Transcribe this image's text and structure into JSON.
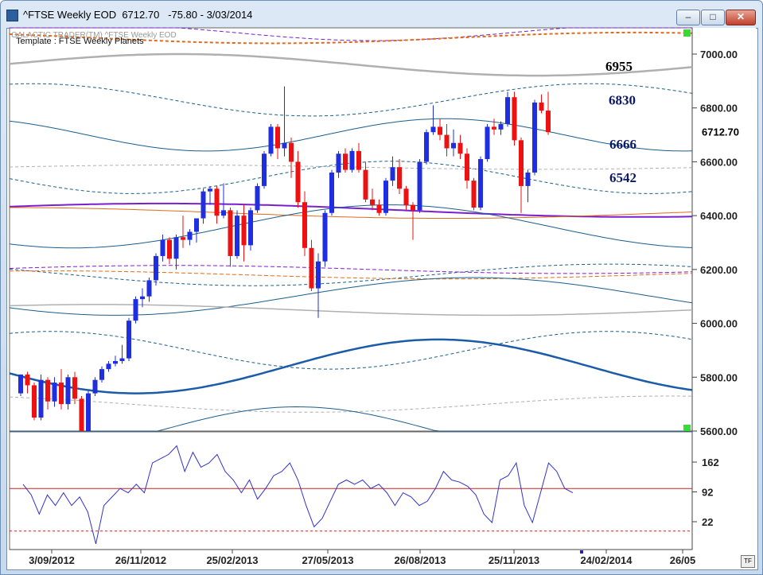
{
  "window": {
    "title": "^FTSE Weekly EOD  6712.70   -75.80 - 3/03/2014",
    "minimize_icon": "minimize-icon",
    "maximize_icon": "maximize-icon",
    "close_icon": "close-icon"
  },
  "chart_header": {
    "watermark": "GALACTIC TRADER(TM)        ^FTSE Weekly EOD",
    "template": "Template : FTSE Weekly Planets"
  },
  "tf_label": "TF",
  "colors": {
    "up": "#1f2ee0",
    "down": "#ee1111",
    "planet_purple": "#7a1fd0",
    "planet_orange": "#e06a1c",
    "planet_teal": "#1a5e8e",
    "planet_gray": "#b0b0b0",
    "oscillator": "#3333cc",
    "osc_line": "#cc2222"
  },
  "chart_data": [
    {
      "type": "candlestick",
      "yticks": [
        "7000.00",
        "6800.00",
        "6600.00",
        "6400.00",
        "6200.00",
        "6000.00",
        "5800.00",
        "5600.00"
      ],
      "ylim": [
        5600,
        7100
      ],
      "xticks": [
        "3/09/2012",
        "26/11/2012",
        "25/02/2013",
        "27/05/2013",
        "26/08/2013",
        "25/11/2013",
        "24/02/2014",
        "26/05"
      ],
      "last_value_label": "6712.70",
      "annotations": [
        {
          "label": "6955",
          "value": 6955
        },
        {
          "label": "6830",
          "value": 6830
        },
        {
          "label": "6666",
          "value": 6666
        },
        {
          "label": "6542",
          "value": 6542
        }
      ],
      "candles": [
        [
          5740,
          5810,
          5730,
          5810
        ],
        [
          5810,
          5820,
          5740,
          5770
        ],
        [
          5770,
          5780,
          5640,
          5650
        ],
        [
          5650,
          5810,
          5640,
          5790
        ],
        [
          5790,
          5800,
          5680,
          5710
        ],
        [
          5710,
          5800,
          5690,
          5780
        ],
        [
          5780,
          5830,
          5680,
          5700
        ],
        [
          5700,
          5810,
          5680,
          5800
        ],
        [
          5800,
          5820,
          5700,
          5720
        ],
        [
          5720,
          5730,
          5560,
          5570
        ],
        [
          5570,
          5750,
          5560,
          5740
        ],
        [
          5740,
          5800,
          5730,
          5790
        ],
        [
          5790,
          5840,
          5780,
          5830
        ],
        [
          5830,
          5860,
          5820,
          5850
        ],
        [
          5850,
          5880,
          5840,
          5860
        ],
        [
          5860,
          5920,
          5850,
          5870
        ],
        [
          5870,
          6020,
          5860,
          6010
        ],
        [
          6010,
          6100,
          6000,
          6090
        ],
        [
          6090,
          6130,
          6060,
          6100
        ],
        [
          6100,
          6170,
          6080,
          6160
        ],
        [
          6160,
          6260,
          6140,
          6250
        ],
        [
          6250,
          6330,
          6230,
          6310
        ],
        [
          6310,
          6320,
          6220,
          6240
        ],
        [
          6240,
          6330,
          6200,
          6320
        ],
        [
          6320,
          6400,
          6280,
          6310
        ],
        [
          6310,
          6350,
          6290,
          6340
        ],
        [
          6340,
          6380,
          6300,
          6390
        ],
        [
          6390,
          6500,
          6370,
          6490
        ],
        [
          6490,
          6510,
          6440,
          6500
        ],
        [
          6500,
          6510,
          6370,
          6400
        ],
        [
          6400,
          6520,
          6390,
          6420
        ],
        [
          6420,
          6430,
          6210,
          6250
        ],
        [
          6250,
          6420,
          6240,
          6400
        ],
        [
          6400,
          6440,
          6230,
          6290
        ],
        [
          6290,
          6430,
          6270,
          6420
        ],
        [
          6420,
          6520,
          6410,
          6510
        ],
        [
          6510,
          6640,
          6500,
          6630
        ],
        [
          6630,
          6740,
          6620,
          6730
        ],
        [
          6730,
          6740,
          6610,
          6650
        ],
        [
          6650,
          6880,
          6620,
          6670
        ],
        [
          6670,
          6690,
          6540,
          6600
        ],
        [
          6600,
          6640,
          6430,
          6450
        ],
        [
          6450,
          6490,
          6250,
          6280
        ],
        [
          6280,
          6310,
          6120,
          6130
        ],
        [
          6130,
          6260,
          6020,
          6230
        ],
        [
          6230,
          6420,
          6210,
          6410
        ],
        [
          6410,
          6570,
          6400,
          6560
        ],
        [
          6560,
          6640,
          6540,
          6630
        ],
        [
          6630,
          6650,
          6560,
          6570
        ],
        [
          6570,
          6650,
          6560,
          6640
        ],
        [
          6640,
          6670,
          6560,
          6570
        ],
        [
          6570,
          6600,
          6450,
          6460
        ],
        [
          6460,
          6500,
          6420,
          6440
        ],
        [
          6440,
          6460,
          6400,
          6410
        ],
        [
          6410,
          6540,
          6400,
          6530
        ],
        [
          6530,
          6620,
          6510,
          6580
        ],
        [
          6580,
          6610,
          6480,
          6500
        ],
        [
          6500,
          6510,
          6420,
          6440
        ],
        [
          6440,
          6450,
          6310,
          6420
        ],
        [
          6420,
          6610,
          6410,
          6600
        ],
        [
          6600,
          6720,
          6590,
          6710
        ],
        [
          6710,
          6810,
          6700,
          6730
        ],
        [
          6730,
          6760,
          6680,
          6700
        ],
        [
          6700,
          6740,
          6620,
          6650
        ],
        [
          6650,
          6720,
          6620,
          6670
        ],
        [
          6670,
          6700,
          6610,
          6630
        ],
        [
          6630,
          6650,
          6500,
          6530
        ],
        [
          6530,
          6540,
          6420,
          6430
        ],
        [
          6430,
          6620,
          6420,
          6610
        ],
        [
          6610,
          6740,
          6600,
          6730
        ],
        [
          6730,
          6760,
          6700,
          6720
        ],
        [
          6720,
          6750,
          6700,
          6740
        ],
        [
          6740,
          6860,
          6730,
          6840
        ],
        [
          6840,
          6860,
          6660,
          6680
        ],
        [
          6680,
          6690,
          6410,
          6510
        ],
        [
          6510,
          6570,
          6450,
          6560
        ],
        [
          6560,
          6830,
          6550,
          6820
        ],
        [
          6820,
          6850,
          6780,
          6790
        ],
        [
          6790,
          6860,
          6700,
          6710
        ]
      ]
    },
    {
      "type": "line",
      "yticks": [
        "162",
        "92",
        "22"
      ],
      "ylim": [
        -40,
        200
      ],
      "reference_lines": [
        {
          "value": 100,
          "style": "solid"
        },
        {
          "value": 0,
          "style": "dotted"
        }
      ],
      "values": [
        110,
        85,
        40,
        85,
        60,
        90,
        60,
        80,
        45,
        -30,
        60,
        80,
        100,
        90,
        110,
        90,
        160,
        170,
        180,
        200,
        140,
        185,
        150,
        160,
        180,
        140,
        120,
        90,
        120,
        75,
        100,
        130,
        140,
        160,
        120,
        60,
        10,
        30,
        70,
        110,
        120,
        110,
        120,
        100,
        110,
        90,
        60,
        90,
        80,
        60,
        70,
        100,
        140,
        120,
        115,
        105,
        85,
        40,
        20,
        120,
        130,
        160,
        60,
        20,
        90,
        160,
        140,
        100,
        90
      ]
    }
  ]
}
